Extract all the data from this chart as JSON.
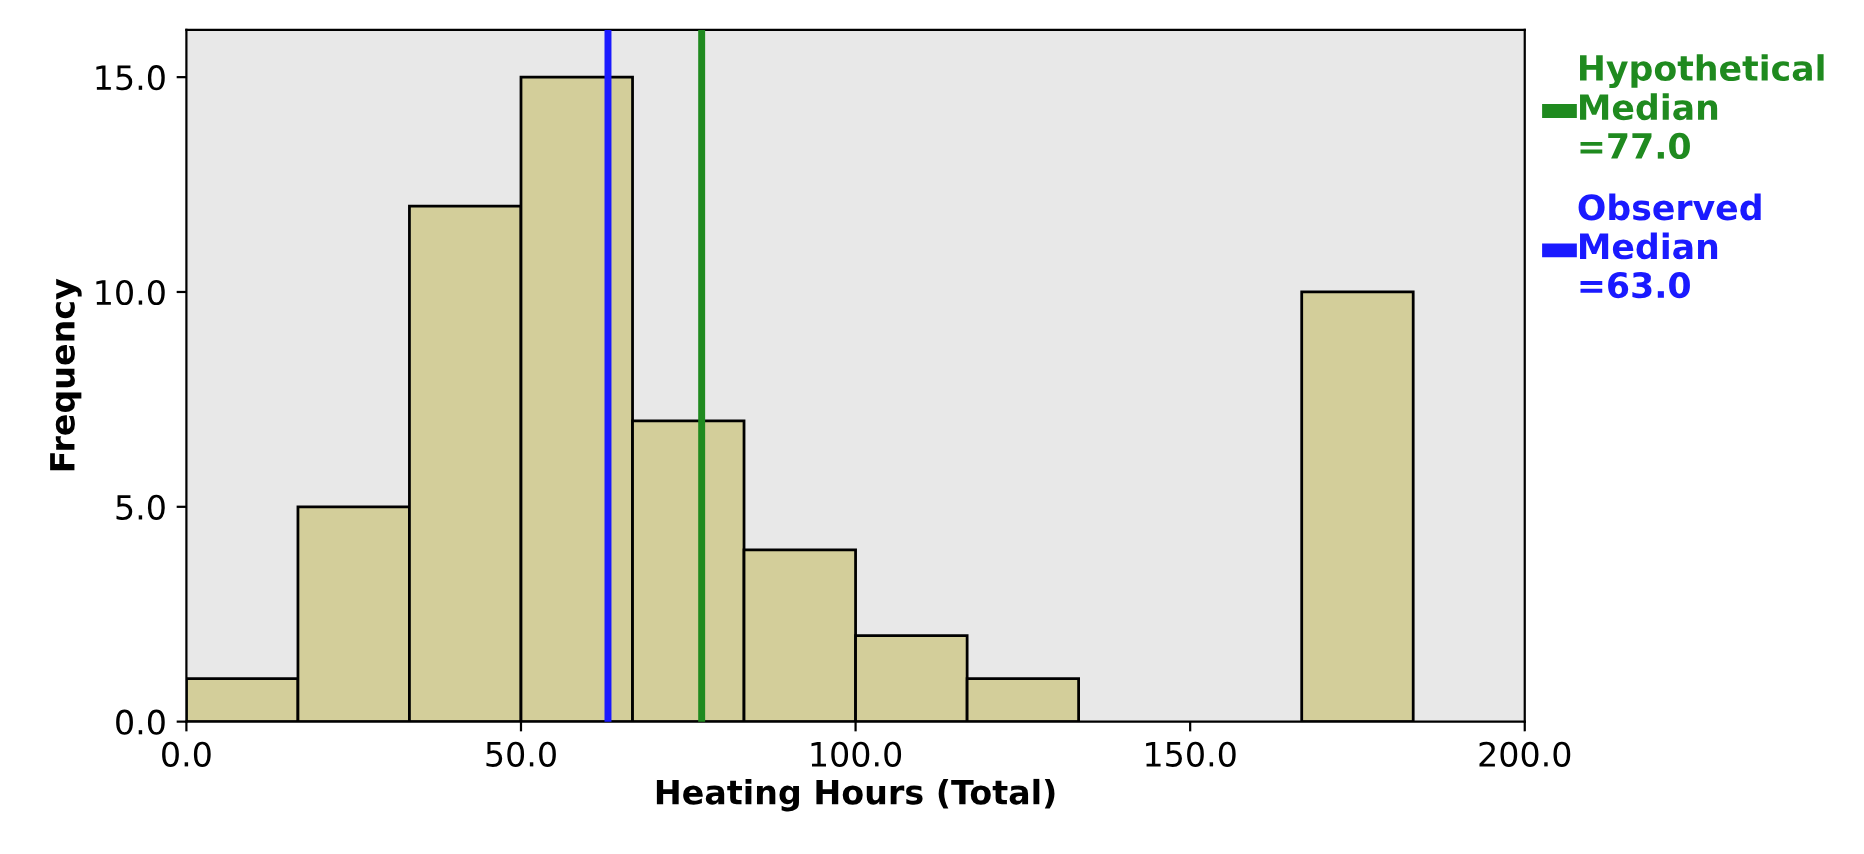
{
  "chart_data": {
    "type": "histogram",
    "xlabel": "Heating Hours (Total)",
    "ylabel": "Frequency",
    "bins": [
      0,
      16.67,
      33.33,
      50,
      66.67,
      83.33,
      100,
      116.67,
      133.33,
      150,
      166.67,
      183.33
    ],
    "values": [
      1,
      5,
      12,
      15,
      7,
      4,
      2,
      1,
      0,
      0,
      10
    ],
    "color": "#d3ce9a",
    "xlim": [
      0,
      200
    ],
    "xticks": [
      {
        "value": 0,
        "label": "0.0"
      },
      {
        "value": 50,
        "label": "50.0"
      },
      {
        "value": 100,
        "label": "100.0"
      },
      {
        "value": 150,
        "label": "150.0"
      },
      {
        "value": 200,
        "label": "200.0"
      }
    ],
    "ylim": [
      0,
      16.1
    ],
    "yticks": [
      {
        "value": 0,
        "label": "0.0"
      },
      {
        "value": 5,
        "label": "5.0"
      },
      {
        "value": 10,
        "label": "10.0"
      },
      {
        "value": 15,
        "label": "15.0"
      }
    ],
    "ref_lines": [
      {
        "axis": "x",
        "value": 77,
        "label": "Hypothetical\nMedian\n=77.0",
        "color": "#1f8a1f"
      },
      {
        "axis": "x",
        "value": 63,
        "label": "Observed\nMedian\n=63.0",
        "color": "#1a1aff"
      }
    ],
    "grid": false,
    "legend": "right"
  }
}
